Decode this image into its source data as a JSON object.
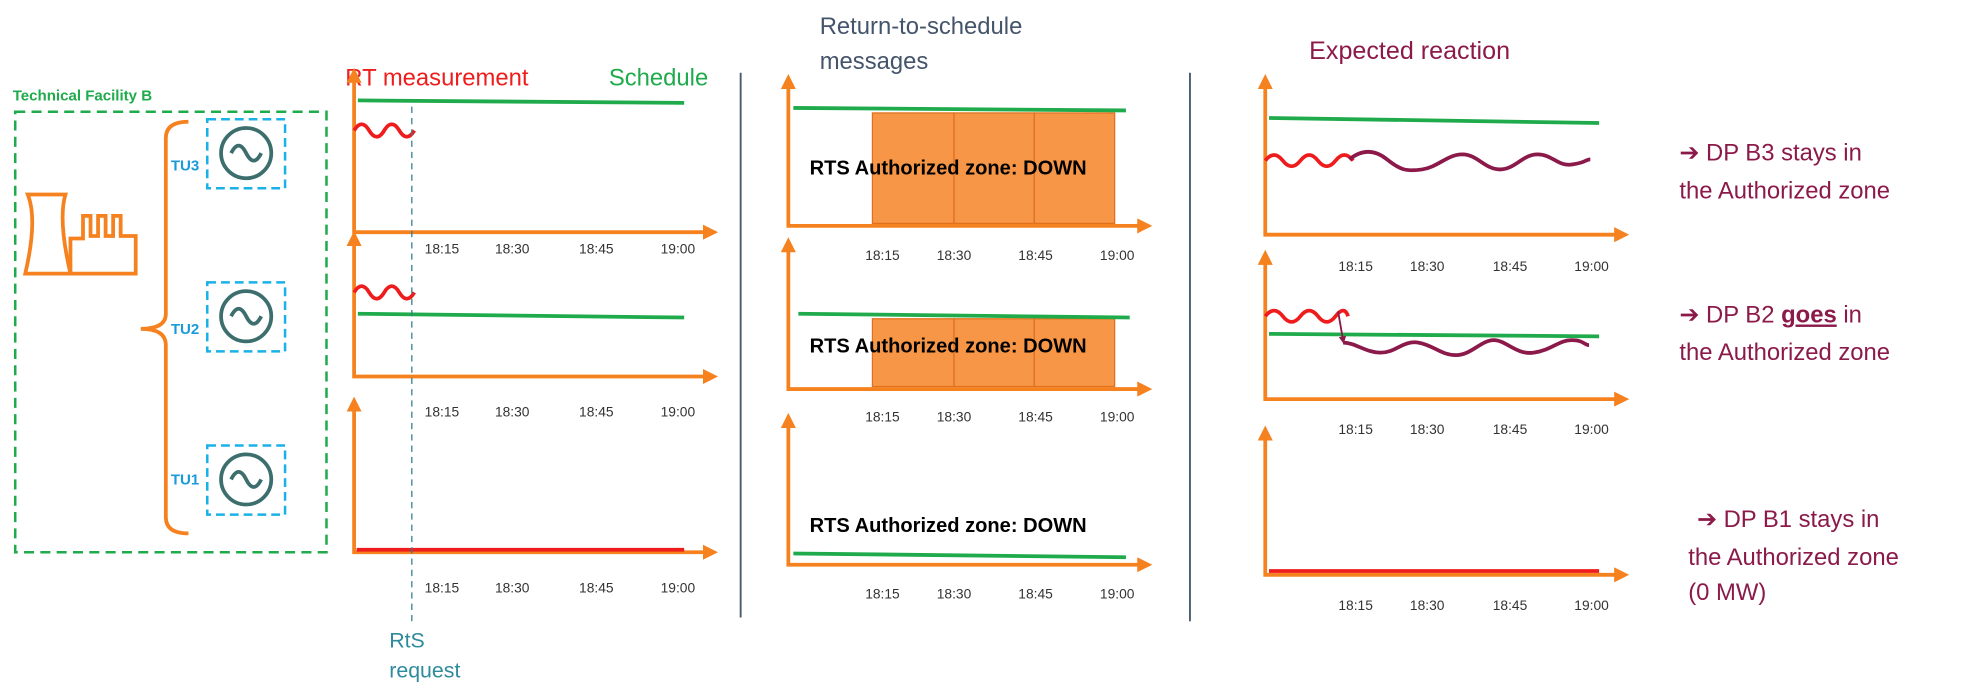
{
  "facility": {
    "label": "Technical Facility B",
    "units": [
      "TU3",
      "TU2",
      "TU1"
    ]
  },
  "time_ticks": [
    "18:15",
    "18:30",
    "18:45",
    "19:00"
  ],
  "measurement_panel": {
    "rt_label": "RT measurement",
    "schedule_label": "Schedule",
    "request_lines": [
      "RtS",
      "request"
    ]
  },
  "messages_panel": {
    "title_lines": [
      "Return-to-schedule",
      "messages"
    ],
    "zone_label": "RTS Authorized zone: DOWN"
  },
  "reaction_panel": {
    "title": "Expected reaction"
  },
  "outcomes": [
    {
      "lines": [
        "➔ DP B3 stays in",
        "the Authorized zone"
      ]
    },
    {
      "first_line": {
        "before": "➔ DP B2 ",
        "emphasis": "goes",
        "after": " in"
      },
      "lines": [
        "the Authorized zone"
      ]
    },
    {
      "lines": [
        "➔ DP B1 stays in",
        "the Authorized zone",
        "(0 MW)"
      ]
    }
  ]
}
